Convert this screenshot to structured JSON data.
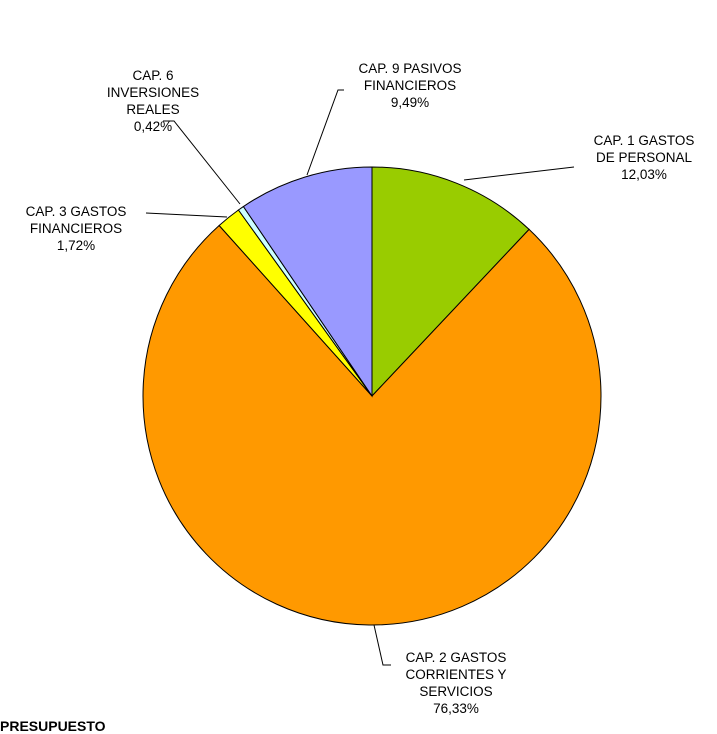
{
  "chart_data": {
    "type": "pie",
    "title": "",
    "start_angle_deg": 0,
    "direction": "clockwise",
    "slices": [
      {
        "label": "CAP. 1 GASTOS DE PERSONAL",
        "label_lines": [
          "CAP. 1 GASTOS",
          "DE PERSONAL"
        ],
        "value": 12.03,
        "value_label": "12,03%",
        "color": "#99CC00"
      },
      {
        "label": "CAP. 2 GASTOS CORRIENTES Y SERVICIOS",
        "label_lines": [
          "CAP. 2 GASTOS",
          "CORRIENTES Y",
          "SERVICIOS"
        ],
        "value": 76.33,
        "value_label": "76,33%",
        "color": "#FF9900"
      },
      {
        "label": "CAP. 3 GASTOS FINANCIEROS",
        "label_lines": [
          "CAP. 3 GASTOS",
          "FINANCIEROS"
        ],
        "value": 1.72,
        "value_label": "1,72%",
        "color": "#FFFF00"
      },
      {
        "label": "CAP. 6 INVERSIONES REALES",
        "label_lines": [
          "CAP. 6",
          "INVERSIONES",
          "REALES"
        ],
        "value": 0.42,
        "value_label": "0,42%",
        "color": "#CCFFFF"
      },
      {
        "label": "CAP. 9 PASIVOS FINANCIEROS",
        "label_lines": [
          "CAP. 9 PASIVOS",
          "FINANCIEROS"
        ],
        "value": 9.49,
        "value_label": "9,49%",
        "color": "#9999FF"
      }
    ]
  },
  "footer_text": "PRESUPUESTO"
}
